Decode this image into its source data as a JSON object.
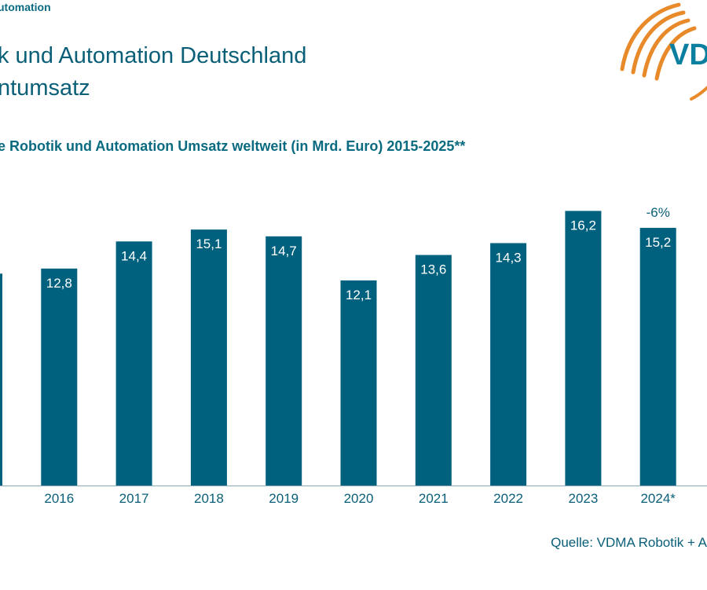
{
  "header": {
    "topline": "utomation",
    "title_line1": "k und Automation Deutschland",
    "title_line2": "ntumsatz"
  },
  "logo": {
    "text": "VD"
  },
  "source": "Quelle: VDMA Robotik + A",
  "colors": {
    "bar": "#00617f",
    "text": "#0a5f78",
    "logo_orange": "#e8892a"
  },
  "chart_data": {
    "type": "bar",
    "title": "e Robotik und Automation Umsatz weltweit (in Mrd. Euro) 2015-2025**",
    "categories": [
      "",
      "2016",
      "2017",
      "2018",
      "2019",
      "2020",
      "2021",
      "2022",
      "2023",
      "2024*"
    ],
    "values": [
      12.5,
      12.8,
      14.4,
      15.1,
      14.7,
      12.1,
      13.6,
      14.3,
      16.2,
      15.2
    ],
    "data_labels": [
      "",
      "12,8",
      "14,4",
      "15,1",
      "14,7",
      "12,1",
      "13,6",
      "14,3",
      "16,2",
      "15,2"
    ],
    "annotations": [
      {
        "category": "2024*",
        "text": "-6%"
      }
    ],
    "ylim": [
      0,
      16.5
    ],
    "xlabel": "",
    "ylabel": "",
    "grid": false,
    "legend": "none"
  }
}
